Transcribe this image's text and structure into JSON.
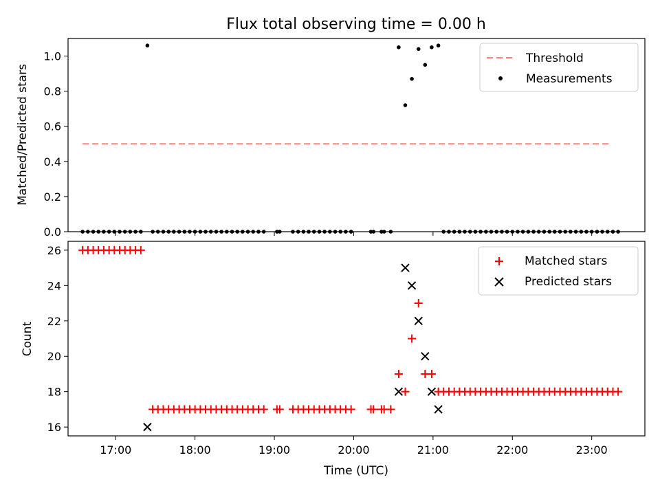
{
  "chart_data": [
    {
      "type": "scatter",
      "title": "Flux total observing time = 0.00 h",
      "xlabel": "",
      "ylabel": "Matched/Predicted stars",
      "xlim": [
        16.4,
        23.67
      ],
      "ylim": [
        0.0,
        1.1
      ],
      "yticks": [
        0.0,
        0.2,
        0.4,
        0.6,
        0.8,
        1.0
      ],
      "ytick_labels": [
        "0.0",
        "0.2",
        "0.4",
        "0.6",
        "0.8",
        "1.0"
      ],
      "legend_position": "upper right",
      "legend": [
        "Threshold",
        "Measurements"
      ],
      "threshold": {
        "name": "Threshold",
        "y": 0.5,
        "x_start": 16.583,
        "x_end": 23.25,
        "color": "#ff7f7f",
        "style": "dashed"
      },
      "measurements": {
        "name": "Measurements",
        "color": "#000000",
        "points": [
          [
            16.583,
            0
          ],
          [
            16.65,
            0
          ],
          [
            16.717,
            0
          ],
          [
            16.783,
            0
          ],
          [
            16.85,
            0
          ],
          [
            16.917,
            0
          ],
          [
            16.983,
            0
          ],
          [
            17.05,
            0
          ],
          [
            17.117,
            0
          ],
          [
            17.183,
            0
          ],
          [
            17.25,
            0
          ],
          [
            17.317,
            0
          ],
          [
            17.4,
            1.06
          ],
          [
            17.467,
            0
          ],
          [
            17.533,
            0
          ],
          [
            17.6,
            0
          ],
          [
            17.667,
            0
          ],
          [
            17.733,
            0
          ],
          [
            17.8,
            0
          ],
          [
            17.867,
            0
          ],
          [
            17.933,
            0
          ],
          [
            18.0,
            0
          ],
          [
            18.067,
            0
          ],
          [
            18.133,
            0
          ],
          [
            18.2,
            0
          ],
          [
            18.267,
            0
          ],
          [
            18.333,
            0
          ],
          [
            18.4,
            0
          ],
          [
            18.467,
            0
          ],
          [
            18.533,
            0
          ],
          [
            18.6,
            0
          ],
          [
            18.667,
            0
          ],
          [
            18.733,
            0
          ],
          [
            18.8,
            0
          ],
          [
            18.867,
            0
          ],
          [
            19.033,
            0
          ],
          [
            19.067,
            0
          ],
          [
            19.233,
            0
          ],
          [
            19.3,
            0
          ],
          [
            19.367,
            0
          ],
          [
            19.433,
            0
          ],
          [
            19.5,
            0
          ],
          [
            19.567,
            0
          ],
          [
            19.633,
            0
          ],
          [
            19.7,
            0
          ],
          [
            19.767,
            0
          ],
          [
            19.833,
            0
          ],
          [
            19.9,
            0
          ],
          [
            19.967,
            0
          ],
          [
            20.217,
            0
          ],
          [
            20.25,
            0
          ],
          [
            20.35,
            0
          ],
          [
            20.383,
            0
          ],
          [
            20.467,
            0
          ],
          [
            20.567,
            1.05
          ],
          [
            20.65,
            0.72
          ],
          [
            20.733,
            0.87
          ],
          [
            20.817,
            1.04
          ],
          [
            20.9,
            0.95
          ],
          [
            20.983,
            1.05
          ],
          [
            21.067,
            1.06
          ],
          [
            21.133,
            0
          ],
          [
            21.2,
            0
          ],
          [
            21.267,
            0
          ],
          [
            21.333,
            0
          ],
          [
            21.4,
            0
          ],
          [
            21.467,
            0
          ],
          [
            21.533,
            0
          ],
          [
            21.6,
            0
          ],
          [
            21.667,
            0
          ],
          [
            21.733,
            0
          ],
          [
            21.8,
            0
          ],
          [
            21.867,
            0
          ],
          [
            21.933,
            0
          ],
          [
            22.0,
            0
          ],
          [
            22.067,
            0
          ],
          [
            22.133,
            0
          ],
          [
            22.2,
            0
          ],
          [
            22.267,
            0
          ],
          [
            22.333,
            0
          ],
          [
            22.4,
            0
          ],
          [
            22.467,
            0
          ],
          [
            22.533,
            0
          ],
          [
            22.6,
            0
          ],
          [
            22.667,
            0
          ],
          [
            22.733,
            0
          ],
          [
            22.8,
            0
          ],
          [
            22.867,
            0
          ],
          [
            22.933,
            0
          ],
          [
            23.0,
            0
          ],
          [
            23.067,
            0
          ],
          [
            23.133,
            0
          ],
          [
            23.2,
            0
          ],
          [
            23.267,
            0
          ],
          [
            23.333,
            0
          ]
        ]
      }
    },
    {
      "type": "scatter",
      "title": "",
      "xlabel": "Time (UTC)",
      "ylabel": "Count",
      "xlim": [
        16.4,
        23.67
      ],
      "ylim": [
        15.5,
        26.5
      ],
      "yticks": [
        16,
        18,
        20,
        22,
        24,
        26
      ],
      "ytick_labels": [
        "16",
        "18",
        "20",
        "22",
        "24",
        "26"
      ],
      "xticks": [
        17,
        18,
        19,
        20,
        21,
        22,
        23
      ],
      "xtick_labels": [
        "17:00",
        "18:00",
        "19:00",
        "20:00",
        "21:00",
        "22:00",
        "23:00"
      ],
      "legend_position": "upper right",
      "legend": [
        "Matched stars",
        "Predicted stars"
      ],
      "matched": {
        "name": "Matched stars",
        "marker": "+",
        "color": "#ff0000",
        "points": [
          [
            16.583,
            26
          ],
          [
            16.65,
            26
          ],
          [
            16.717,
            26
          ],
          [
            16.783,
            26
          ],
          [
            16.85,
            26
          ],
          [
            16.917,
            26
          ],
          [
            16.983,
            26
          ],
          [
            17.05,
            26
          ],
          [
            17.117,
            26
          ],
          [
            17.183,
            26
          ],
          [
            17.25,
            26
          ],
          [
            17.317,
            26
          ],
          [
            17.467,
            17
          ],
          [
            17.533,
            17
          ],
          [
            17.6,
            17
          ],
          [
            17.667,
            17
          ],
          [
            17.733,
            17
          ],
          [
            17.8,
            17
          ],
          [
            17.867,
            17
          ],
          [
            17.933,
            17
          ],
          [
            18.0,
            17
          ],
          [
            18.067,
            17
          ],
          [
            18.133,
            17
          ],
          [
            18.2,
            17
          ],
          [
            18.267,
            17
          ],
          [
            18.333,
            17
          ],
          [
            18.4,
            17
          ],
          [
            18.467,
            17
          ],
          [
            18.533,
            17
          ],
          [
            18.6,
            17
          ],
          [
            18.667,
            17
          ],
          [
            18.733,
            17
          ],
          [
            18.8,
            17
          ],
          [
            18.867,
            17
          ],
          [
            19.033,
            17
          ],
          [
            19.067,
            17
          ],
          [
            19.233,
            17
          ],
          [
            19.3,
            17
          ],
          [
            19.367,
            17
          ],
          [
            19.433,
            17
          ],
          [
            19.5,
            17
          ],
          [
            19.567,
            17
          ],
          [
            19.633,
            17
          ],
          [
            19.7,
            17
          ],
          [
            19.767,
            17
          ],
          [
            19.833,
            17
          ],
          [
            19.9,
            17
          ],
          [
            19.967,
            17
          ],
          [
            20.217,
            17
          ],
          [
            20.25,
            17
          ],
          [
            20.35,
            17
          ],
          [
            20.383,
            17
          ],
          [
            20.467,
            17
          ],
          [
            20.567,
            19
          ],
          [
            20.65,
            18
          ],
          [
            20.733,
            21
          ],
          [
            20.817,
            23
          ],
          [
            20.9,
            19
          ],
          [
            20.983,
            19
          ],
          [
            21.067,
            18
          ],
          [
            21.133,
            18
          ],
          [
            21.2,
            18
          ],
          [
            21.267,
            18
          ],
          [
            21.333,
            18
          ],
          [
            21.4,
            18
          ],
          [
            21.467,
            18
          ],
          [
            21.533,
            18
          ],
          [
            21.6,
            18
          ],
          [
            21.667,
            18
          ],
          [
            21.733,
            18
          ],
          [
            21.8,
            18
          ],
          [
            21.867,
            18
          ],
          [
            21.933,
            18
          ],
          [
            22.0,
            18
          ],
          [
            22.067,
            18
          ],
          [
            22.133,
            18
          ],
          [
            22.2,
            18
          ],
          [
            22.267,
            18
          ],
          [
            22.333,
            18
          ],
          [
            22.4,
            18
          ],
          [
            22.467,
            18
          ],
          [
            22.533,
            18
          ],
          [
            22.6,
            18
          ],
          [
            22.667,
            18
          ],
          [
            22.733,
            18
          ],
          [
            22.8,
            18
          ],
          [
            22.867,
            18
          ],
          [
            22.933,
            18
          ],
          [
            23.0,
            18
          ],
          [
            23.067,
            18
          ],
          [
            23.133,
            18
          ],
          [
            23.2,
            18
          ],
          [
            23.267,
            18
          ],
          [
            23.333,
            18
          ]
        ]
      },
      "predicted": {
        "name": "Predicted stars",
        "marker": "x",
        "color": "#000000",
        "points": [
          [
            17.4,
            16
          ],
          [
            20.567,
            18
          ],
          [
            20.65,
            25
          ],
          [
            20.733,
            24
          ],
          [
            20.817,
            22
          ],
          [
            20.9,
            20
          ],
          [
            20.983,
            18
          ],
          [
            21.067,
            17
          ]
        ]
      }
    }
  ]
}
